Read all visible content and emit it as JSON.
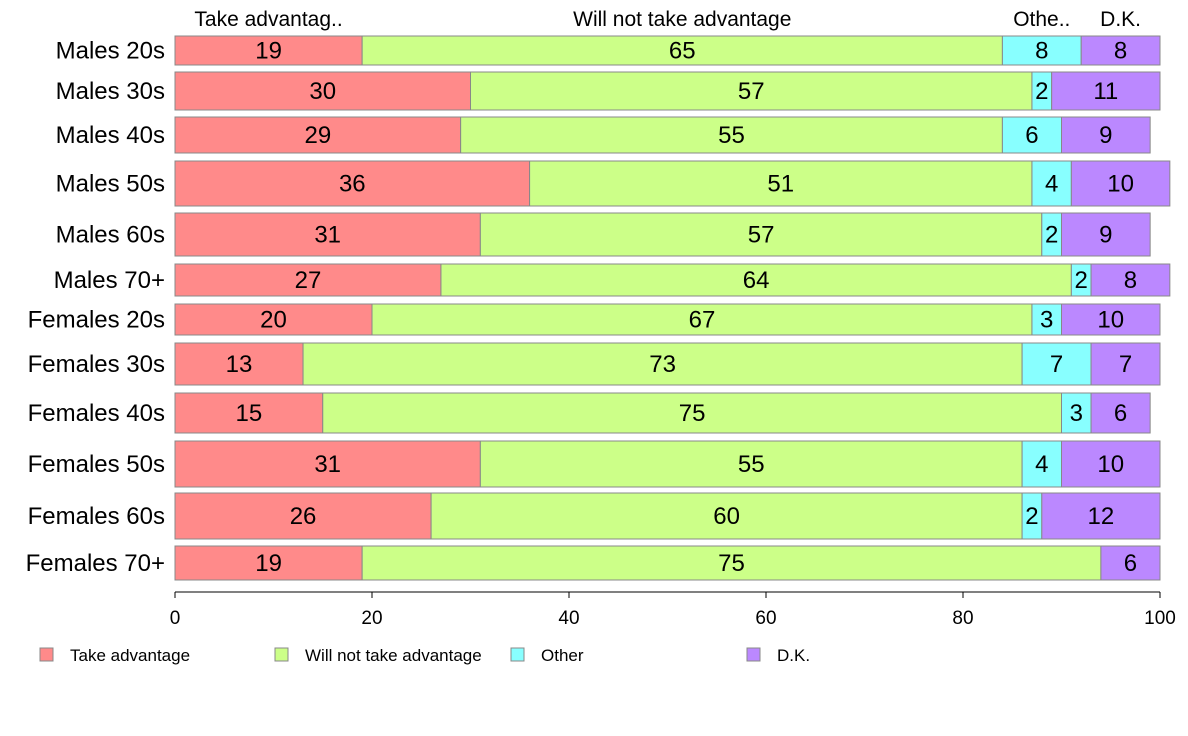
{
  "chart_data": {
    "type": "bar",
    "orientation": "horizontal",
    "stacked": true,
    "categories": [
      "Males 20s",
      "Males 30s",
      "Males 40s",
      "Males 50s",
      "Males 60s",
      "Males 70+",
      "Females 20s",
      "Females 30s",
      "Females 40s",
      "Females 50s",
      "Females 60s",
      "Females 70+"
    ],
    "series": [
      {
        "name": "Take advantage",
        "short_label": "Take advantag..",
        "color": "#ff8a8a",
        "values": [
          19,
          30,
          29,
          36,
          31,
          27,
          20,
          13,
          15,
          31,
          26,
          19
        ]
      },
      {
        "name": "Will not take advantage",
        "short_label": "Will not take advantage",
        "color": "#ccff88",
        "values": [
          65,
          57,
          55,
          51,
          57,
          64,
          67,
          73,
          75,
          55,
          60,
          75
        ]
      },
      {
        "name": "Other",
        "short_label": "Othe..",
        "color": "#88ffff",
        "values": [
          8,
          2,
          6,
          4,
          2,
          2,
          3,
          7,
          3,
          4,
          2,
          0
        ]
      },
      {
        "name": "D.K.",
        "short_label": "D.K.",
        "color": "#bb88ff",
        "values": [
          8,
          11,
          9,
          10,
          9,
          8,
          10,
          7,
          6,
          10,
          12,
          6
        ]
      }
    ],
    "xlim": [
      0,
      100
    ],
    "xticks": [
      "0",
      "20",
      "40",
      "60",
      "80",
      "100"
    ],
    "legend_position": "bottom",
    "grid": false
  }
}
